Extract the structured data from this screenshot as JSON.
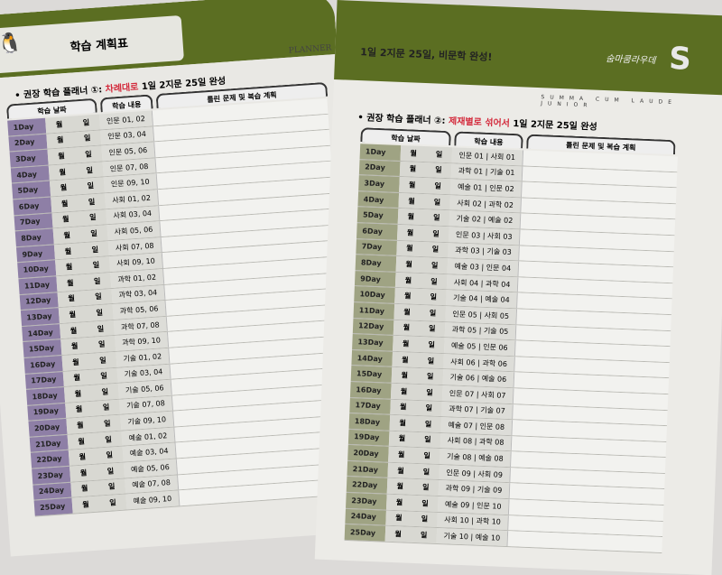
{
  "left_page": {
    "tab_title": "학습 계획표",
    "planner_label": "PLANNER",
    "heading_prefix": "권장 학습 플래너 ①:",
    "heading_red": "차례대로",
    "heading_suffix": "1일 2지문 25일 완성",
    "col_headers": [
      "학습 날짜",
      "학습 내용",
      "틀린 문제 및 복습 계획"
    ],
    "month_label": "월",
    "day_label": "일",
    "rows": [
      {
        "day": "1Day",
        "content": "인문 01, 02"
      },
      {
        "day": "2Day",
        "content": "인문 03, 04"
      },
      {
        "day": "3Day",
        "content": "인문 05, 06"
      },
      {
        "day": "4Day",
        "content": "인문 07, 08"
      },
      {
        "day": "5Day",
        "content": "인문 09, 10"
      },
      {
        "day": "6Day",
        "content": "사회 01, 02"
      },
      {
        "day": "7Day",
        "content": "사회 03, 04"
      },
      {
        "day": "8Day",
        "content": "사회 05, 06"
      },
      {
        "day": "9Day",
        "content": "사회 07, 08"
      },
      {
        "day": "10Day",
        "content": "사회 09, 10"
      },
      {
        "day": "11Day",
        "content": "과학 01, 02"
      },
      {
        "day": "12Day",
        "content": "과학 03, 04"
      },
      {
        "day": "13Day",
        "content": "과학 05, 06"
      },
      {
        "day": "14Day",
        "content": "과학 07, 08"
      },
      {
        "day": "15Day",
        "content": "과학 09, 10"
      },
      {
        "day": "16Day",
        "content": "기술 01, 02"
      },
      {
        "day": "17Day",
        "content": "기술 03, 04"
      },
      {
        "day": "18Day",
        "content": "기술 05, 06"
      },
      {
        "day": "19Day",
        "content": "기술 07, 08"
      },
      {
        "day": "20Day",
        "content": "기술 09, 10"
      },
      {
        "day": "21Day",
        "content": "예술 01, 02"
      },
      {
        "day": "22Day",
        "content": "예술 03, 04"
      },
      {
        "day": "23Day",
        "content": "예술 05, 06"
      },
      {
        "day": "24Day",
        "content": "예술 07, 08"
      },
      {
        "day": "25Day",
        "content": "예술 09, 10"
      }
    ]
  },
  "right_page": {
    "slogan": "1일 2지문 25일, 비문학 완성!",
    "brand": "숨마쿰라우데",
    "logo": "S",
    "sub_brand": "SUMMA CUM LAUDE JUNIOR",
    "heading_prefix": "권장 학습 플래너 ②:",
    "heading_red": "제재별로 섞어서",
    "heading_suffix": "1일 2지문 25일 완성",
    "col_headers": [
      "학습 날짜",
      "학습 내용",
      "틀린 문제 및 복습 계획"
    ],
    "month_label": "월",
    "day_label": "일",
    "rows": [
      {
        "day": "1Day",
        "content": "인문 01 | 사회 01"
      },
      {
        "day": "2Day",
        "content": "과학 01 | 기술 01"
      },
      {
        "day": "3Day",
        "content": "예술 01 | 인문 02"
      },
      {
        "day": "4Day",
        "content": "사회 02 | 과학 02"
      },
      {
        "day": "5Day",
        "content": "기술 02 | 예술 02"
      },
      {
        "day": "6Day",
        "content": "인문 03 | 사회 03"
      },
      {
        "day": "7Day",
        "content": "과학 03 | 기술 03"
      },
      {
        "day": "8Day",
        "content": "예술 03 | 인문 04"
      },
      {
        "day": "9Day",
        "content": "사회 04 | 과학 04"
      },
      {
        "day": "10Day",
        "content": "기술 04 | 예술 04"
      },
      {
        "day": "11Day",
        "content": "인문 05 | 사회 05"
      },
      {
        "day": "12Day",
        "content": "과학 05 | 기술 05"
      },
      {
        "day": "13Day",
        "content": "예술 05 | 인문 06"
      },
      {
        "day": "14Day",
        "content": "사회 06 | 과학 06"
      },
      {
        "day": "15Day",
        "content": "기술 06 | 예술 06"
      },
      {
        "day": "16Day",
        "content": "인문 07 | 사회 07"
      },
      {
        "day": "17Day",
        "content": "과학 07 | 기술 07"
      },
      {
        "day": "18Day",
        "content": "예술 07 | 인문 08"
      },
      {
        "day": "19Day",
        "content": "사회 08 | 과학 08"
      },
      {
        "day": "20Day",
        "content": "기술 08 | 예술 08"
      },
      {
        "day": "21Day",
        "content": "인문 09 | 사회 09"
      },
      {
        "day": "22Day",
        "content": "과학 09 | 기술 09"
      },
      {
        "day": "23Day",
        "content": "예술 09 | 인문 10"
      },
      {
        "day": "24Day",
        "content": "사회 10 | 과학 10"
      },
      {
        "day": "25Day",
        "content": "기술 10 | 예술 10"
      }
    ]
  }
}
